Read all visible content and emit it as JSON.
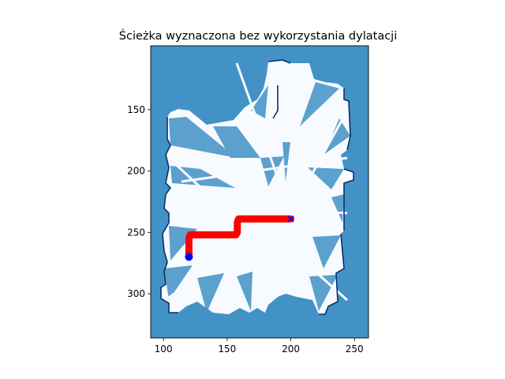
{
  "chart_data": {
    "type": "heatmap",
    "title": "Ścieżka wyznaczona bez wykorzystania dylatacji",
    "xlabel": "",
    "ylabel": "",
    "xlim": [
      90,
      261
    ],
    "ylim": [
      336,
      98
    ],
    "y_inverted": true,
    "x_ticks": [
      100,
      150,
      200,
      250
    ],
    "y_ticks": [
      150,
      200,
      250,
      300
    ],
    "grid": false,
    "colormap": "Blues",
    "colors": {
      "background": "#4292c6",
      "free_space": "#f7fbff",
      "wall": "#08306b",
      "path": "#ff0000",
      "start": "#0000ff",
      "goal": "#0000ff"
    },
    "path": {
      "x": [
        120,
        120,
        121,
        157,
        158,
        158,
        159,
        200
      ],
      "y": [
        270,
        255,
        252,
        252,
        250,
        242,
        239,
        239
      ]
    },
    "start": {
      "x": 120,
      "y": 270,
      "marker": "o"
    },
    "goal": {
      "x": 200,
      "y": 239,
      "marker": "x"
    }
  }
}
